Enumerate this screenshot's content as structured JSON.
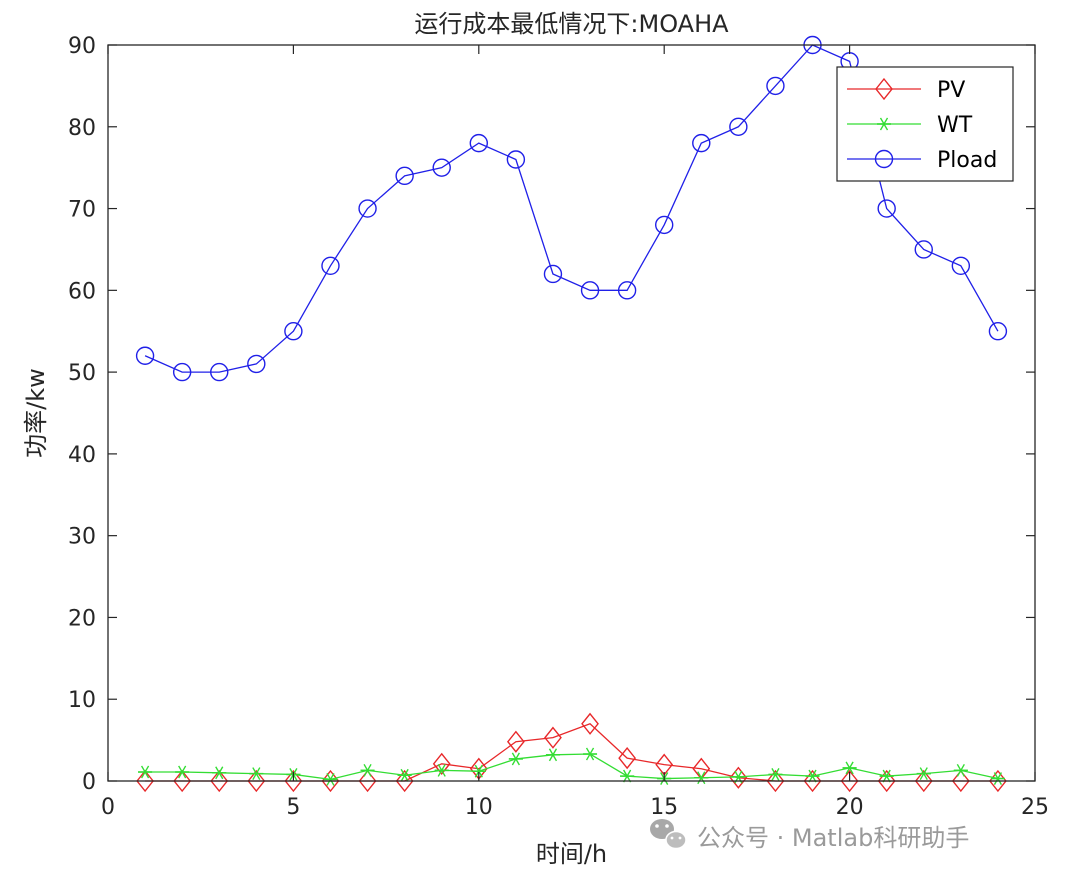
{
  "chart_data": {
    "type": "line",
    "title": "运行成本最低情况下:MOAHA",
    "xlabel": "时间/h",
    "ylabel": "功率/kw",
    "xlim": [
      0,
      25
    ],
    "ylim": [
      0,
      90
    ],
    "xticks": [
      0,
      5,
      10,
      15,
      20,
      25
    ],
    "yticks": [
      0,
      10,
      20,
      30,
      40,
      50,
      60,
      70,
      80,
      90
    ],
    "grid": false,
    "legend_position": "top-right",
    "x": [
      1,
      2,
      3,
      4,
      5,
      6,
      7,
      8,
      9,
      10,
      11,
      12,
      13,
      14,
      15,
      16,
      17,
      18,
      19,
      20,
      21,
      22,
      23,
      24
    ],
    "series": [
      {
        "name": "PV",
        "color": "#e8282a",
        "marker": "diamond",
        "values": [
          0,
          0,
          0,
          0,
          0,
          0,
          0,
          0,
          2.1,
          1.5,
          4.8,
          5.3,
          7.0,
          2.8,
          2.0,
          1.5,
          0.4,
          0,
          0,
          0,
          0,
          0,
          0,
          0
        ]
      },
      {
        "name": "WT",
        "color": "#33dd33",
        "marker": "star",
        "values": [
          1.1,
          1.1,
          1.0,
          0.9,
          0.8,
          0.2,
          1.3,
          0.7,
          1.3,
          1.2,
          2.7,
          3.2,
          3.3,
          0.6,
          0.3,
          0.4,
          0.5,
          0.8,
          0.6,
          1.6,
          0.6,
          0.9,
          1.3,
          0.3
        ]
      },
      {
        "name": "Pload",
        "color": "#2020e8",
        "marker": "circle",
        "values": [
          52,
          50,
          50,
          51,
          55,
          63,
          70,
          74,
          75,
          78,
          76,
          62,
          60,
          60,
          68,
          78,
          80,
          85,
          90,
          88,
          70,
          65,
          63,
          55
        ]
      }
    ]
  },
  "watermark": {
    "icon": "wechat-icon",
    "text": "公众号 · Matlab科研助手"
  }
}
